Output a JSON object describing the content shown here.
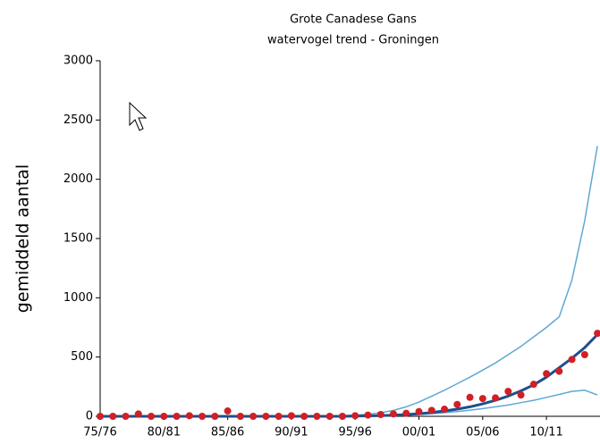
{
  "chart_data": {
    "type": "line",
    "title": "Grote Canadese Gans",
    "subtitle": "watervogel trend - Groningen",
    "y_label": "gemiddeld aantal",
    "categories": [
      "75/76",
      null,
      null,
      null,
      null,
      "80/81",
      null,
      null,
      null,
      null,
      "85/86",
      null,
      null,
      null,
      null,
      "90/91",
      null,
      null,
      null,
      null,
      "95/96",
      null,
      null,
      null,
      null,
      "00/01",
      null,
      null,
      null,
      null,
      "05/06",
      null,
      null,
      null,
      null,
      "10/11",
      null,
      null,
      null,
      null
    ],
    "ylim": [
      0,
      3000
    ],
    "yticks": [
      0,
      500,
      1000,
      1500,
      2000,
      2500,
      3000
    ],
    "series": [
      {
        "color": "#5fa8d3",
        "mode": "lines",
        "linewidth": 1.5,
        "values": [
          0,
          0,
          0,
          0,
          0,
          0,
          0,
          0,
          0,
          0,
          0,
          0,
          0,
          0,
          0,
          0,
          0,
          0,
          3,
          6,
          10,
          18,
          30,
          50,
          80,
          120,
          170,
          220,
          275,
          330,
          390,
          450,
          520,
          590,
          670,
          750,
          840,
          1150,
          1650,
          2280
        ]
      },
      {
        "color": "#5fa8d3",
        "mode": "lines",
        "linewidth": 1.5,
        "values": [
          0,
          0,
          0,
          0,
          0,
          0,
          0,
          0,
          0,
          0,
          0,
          0,
          0,
          0,
          0,
          0,
          0,
          0,
          0,
          0,
          0,
          0,
          2,
          5,
          10,
          15,
          22,
          30,
          40,
          52,
          65,
          80,
          95,
          115,
          135,
          160,
          185,
          210,
          220,
          180
        ]
      },
      {
        "color": "#1f4e8c",
        "mode": "lines",
        "linewidth": 3,
        "values": [
          0,
          0,
          0,
          0,
          0,
          0,
          0,
          0,
          0,
          0,
          0,
          0,
          0,
          0,
          0,
          0,
          0,
          0,
          0,
          0,
          2,
          4,
          6,
          10,
          15,
          22,
          32,
          45,
          60,
          80,
          105,
          135,
          170,
          215,
          265,
          330,
          410,
          490,
          580,
          690
        ]
      },
      {
        "color": "#d01f25",
        "mode": "markers",
        "values": [
          0,
          0,
          0,
          20,
          0,
          0,
          0,
          5,
          0,
          0,
          45,
          0,
          0,
          0,
          0,
          5,
          0,
          0,
          0,
          0,
          5,
          10,
          15,
          20,
          25,
          40,
          50,
          60,
          100,
          160,
          150,
          155,
          210,
          180,
          270,
          360,
          380,
          480,
          520,
          700
        ]
      }
    ]
  }
}
